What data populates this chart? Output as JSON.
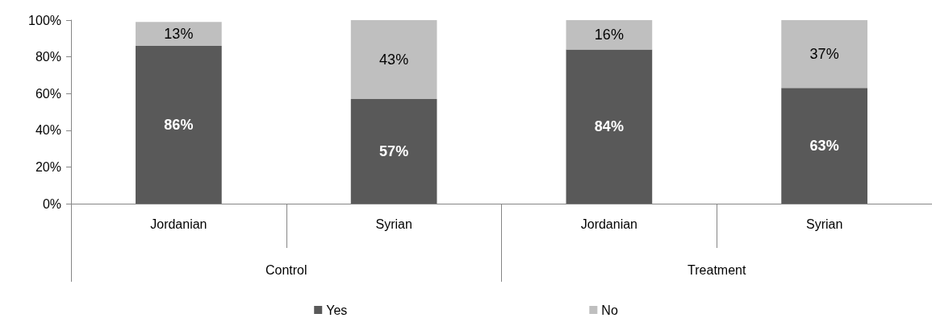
{
  "chart_data": {
    "type": "bar",
    "stacked": true,
    "categories": [
      "Jordanian",
      "Syrian",
      "Jordanian",
      "Syrian"
    ],
    "annotations": [
      "Control",
      "Treatment"
    ],
    "series": [
      {
        "name": "Yes",
        "color": "#595959",
        "values": [
          86,
          57,
          84,
          63
        ],
        "value_labels": [
          "86%",
          "57%",
          "84%",
          "63%"
        ]
      },
      {
        "name": "No",
        "color": "#bfbfbf",
        "values": [
          13,
          43,
          16,
          37
        ],
        "value_labels": [
          "13%",
          "43%",
          "16%",
          "37%"
        ]
      }
    ],
    "ylim": [
      0,
      100
    ],
    "yticks": [
      {
        "value": 0,
        "label": "0%"
      },
      {
        "value": 20,
        "label": "20%"
      },
      {
        "value": 40,
        "label": "40%"
      },
      {
        "value": 60,
        "label": "60%"
      },
      {
        "value": 80,
        "label": "80%"
      },
      {
        "value": 100,
        "label": "100%"
      }
    ],
    "grid": false,
    "legend": "bottom"
  }
}
